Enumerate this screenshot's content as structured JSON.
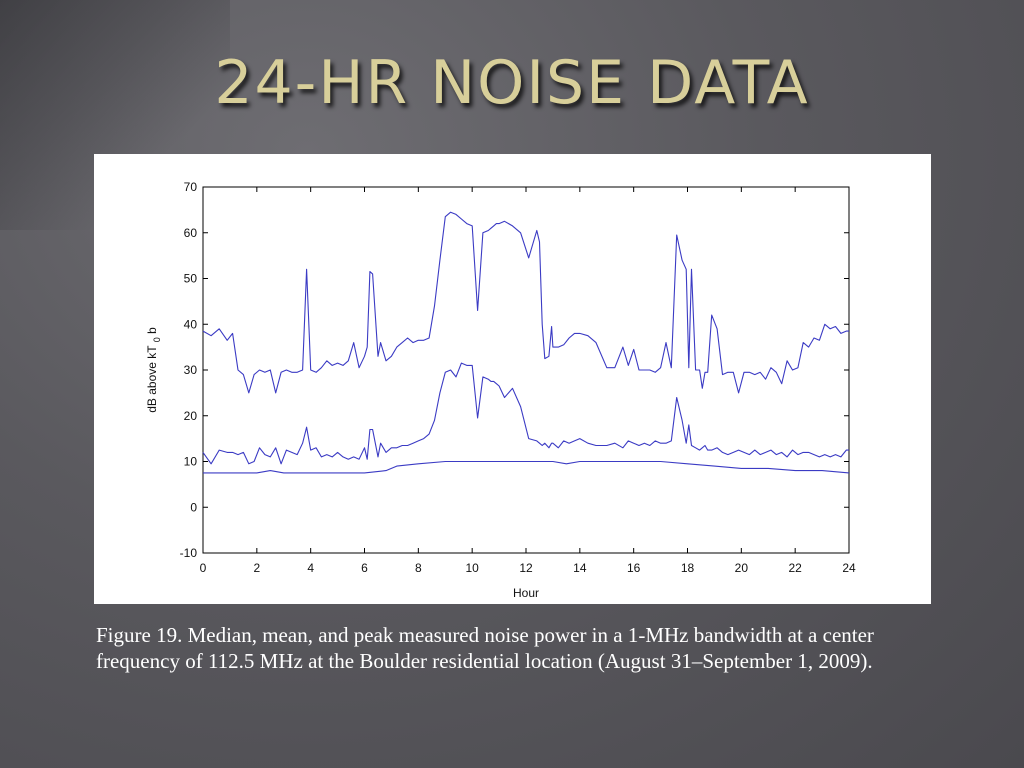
{
  "slide": {
    "title": "24-HR NOISE DATA",
    "caption": "Figure 19. Median, mean, and peak measured noise power in a 1-MHz bandwidth at a center frequency of 112.5 MHz at the Boulder residential location (August 31–September 1, 2009).",
    "colors": {
      "title": "#d8cf9a",
      "line": "#3b3bc4",
      "background": "#5a595e"
    }
  },
  "chart_data": {
    "type": "line",
    "xlabel": "Hour",
    "ylabel": "dB above kT",
    "ylabel_subscript": "0",
    "ylabel_suffix": "b",
    "xlim": [
      0,
      24
    ],
    "ylim": [
      -10,
      70
    ],
    "x_ticks": [
      0,
      2,
      4,
      6,
      8,
      10,
      12,
      14,
      16,
      18,
      20,
      22,
      24
    ],
    "y_ticks": [
      -10,
      0,
      10,
      20,
      30,
      40,
      50,
      60,
      70
    ],
    "grid": false,
    "series": [
      {
        "x": [
          0,
          0.3,
          0.6,
          0.9,
          1.1,
          1.3,
          1.5,
          1.7,
          1.9,
          2.1,
          2.3,
          2.5,
          2.7,
          2.9,
          3.1,
          3.3,
          3.5,
          3.7,
          3.85,
          4.0,
          4.2,
          4.4,
          4.6,
          4.8,
          5.0,
          5.2,
          5.4,
          5.6,
          5.8,
          6.0,
          6.1,
          6.2,
          6.3,
          6.5,
          6.6,
          6.8,
          7.0,
          7.2,
          7.4,
          7.6,
          7.8,
          8.0,
          8.2,
          8.4,
          8.6,
          8.8,
          9.0,
          9.2,
          9.4,
          9.6,
          9.8,
          10.0,
          10.2,
          10.4,
          10.6,
          10.7,
          10.8,
          10.9,
          11.0,
          11.2,
          11.5,
          11.8,
          12.1,
          12.4,
          12.5,
          12.6,
          12.7,
          12.85,
          12.95,
          13.0,
          13.2,
          13.4,
          13.6,
          13.8,
          14.0,
          14.3,
          14.6,
          15.0,
          15.3,
          15.6,
          15.8,
          16.0,
          16.2,
          16.4,
          16.6,
          16.8,
          17.0,
          17.2,
          17.4,
          17.6,
          17.8,
          17.95,
          18.05,
          18.15,
          18.3,
          18.45,
          18.55,
          18.65,
          18.75,
          18.9,
          19.1,
          19.3,
          19.5,
          19.7,
          19.9,
          20.1,
          20.3,
          20.5,
          20.7,
          20.9,
          21.1,
          21.3,
          21.5,
          21.7,
          21.9,
          22.1,
          22.3,
          22.5,
          22.7,
          22.9,
          23.1,
          23.3,
          23.5,
          23.7,
          23.9,
          24.0
        ],
        "values": [
          38.5,
          37.5,
          39.0,
          36.5,
          38.0,
          30.0,
          29.0,
          25.0,
          29.0,
          30.0,
          29.5,
          30.0,
          25.0,
          29.5,
          30.0,
          29.5,
          29.5,
          30.0,
          52.0,
          30.0,
          29.5,
          30.5,
          32.0,
          31.0,
          31.5,
          31.0,
          32.0,
          36.0,
          30.5,
          33.0,
          35.0,
          51.5,
          51.0,
          33.0,
          36.0,
          32.0,
          33.0,
          35.0,
          36.0,
          37.0,
          36.0,
          36.5,
          36.5,
          37.0,
          44.0,
          54.0,
          63.5,
          64.5,
          64.0,
          63.0,
          62.0,
          61.5,
          43.0,
          60.0,
          60.5,
          61.0,
          61.5,
          62.0,
          62.0,
          62.5,
          61.5,
          60.0,
          54.5,
          60.5,
          58.0,
          40.0,
          32.5,
          33.0,
          39.5,
          35.0,
          35.0,
          35.5,
          37.0,
          38.0,
          38.0,
          37.5,
          36.0,
          30.5,
          30.5,
          35.0,
          31.0,
          34.5,
          30.0,
          30.0,
          30.0,
          29.5,
          30.5,
          36.0,
          30.5,
          59.5,
          54.0,
          52.0,
          30.5,
          52.0,
          30.0,
          30.0,
          26.0,
          29.5,
          29.5,
          42.0,
          39.0,
          29.0,
          29.5,
          29.5,
          25.0,
          29.5,
          29.5,
          29.0,
          29.5,
          28.0,
          30.5,
          29.5,
          27.0,
          32.0,
          30.0,
          30.5,
          36.0,
          35.0,
          37.0,
          36.5,
          40.0,
          39.0,
          39.5,
          38.0,
          38.5,
          38.5
        ]
      },
      {
        "x": [
          0,
          0.3,
          0.6,
          0.9,
          1.1,
          1.3,
          1.5,
          1.7,
          1.9,
          2.1,
          2.3,
          2.5,
          2.7,
          2.9,
          3.1,
          3.3,
          3.5,
          3.7,
          3.85,
          4.0,
          4.2,
          4.4,
          4.6,
          4.8,
          5.0,
          5.2,
          5.4,
          5.6,
          5.8,
          6.0,
          6.1,
          6.2,
          6.3,
          6.5,
          6.6,
          6.8,
          7.0,
          7.2,
          7.4,
          7.6,
          7.8,
          8.0,
          8.2,
          8.4,
          8.6,
          8.8,
          9.0,
          9.2,
          9.4,
          9.6,
          9.8,
          10.0,
          10.2,
          10.4,
          10.6,
          10.7,
          10.8,
          10.9,
          11.0,
          11.2,
          11.5,
          11.8,
          12.1,
          12.4,
          12.5,
          12.6,
          12.7,
          12.85,
          12.95,
          13.0,
          13.2,
          13.4,
          13.6,
          13.8,
          14.0,
          14.3,
          14.6,
          15.0,
          15.3,
          15.6,
          15.8,
          16.0,
          16.2,
          16.4,
          16.6,
          16.8,
          17.0,
          17.2,
          17.4,
          17.6,
          17.8,
          17.95,
          18.05,
          18.15,
          18.3,
          18.45,
          18.55,
          18.65,
          18.75,
          18.9,
          19.1,
          19.3,
          19.5,
          19.7,
          19.9,
          20.1,
          20.3,
          20.5,
          20.7,
          20.9,
          21.1,
          21.3,
          21.5,
          21.7,
          21.9,
          22.1,
          22.3,
          22.5,
          22.7,
          22.9,
          23.1,
          23.3,
          23.5,
          23.7,
          23.9,
          24.0
        ],
        "values": [
          12.0,
          9.5,
          12.5,
          12.0,
          12.0,
          11.5,
          12.0,
          9.5,
          10.0,
          13.0,
          11.5,
          11.0,
          13.0,
          9.5,
          12.5,
          12.0,
          11.5,
          14.0,
          17.5,
          12.5,
          13.0,
          11.0,
          11.5,
          11.0,
          12.0,
          11.0,
          10.5,
          11.0,
          10.5,
          13.0,
          10.5,
          17.0,
          17.0,
          11.0,
          14.0,
          12.0,
          13.0,
          13.0,
          13.5,
          13.5,
          14.0,
          14.5,
          15.0,
          16.0,
          19.0,
          25.0,
          29.5,
          30.0,
          28.5,
          31.5,
          31.0,
          31.0,
          19.5,
          28.5,
          28.0,
          27.5,
          27.5,
          27.0,
          26.5,
          24.0,
          26.0,
          22.0,
          15.0,
          14.5,
          14.0,
          13.5,
          14.0,
          13.0,
          14.0,
          14.0,
          13.0,
          14.5,
          14.0,
          14.5,
          15.0,
          14.0,
          13.5,
          13.5,
          14.0,
          13.0,
          14.5,
          14.0,
          13.5,
          14.0,
          13.5,
          14.5,
          14.0,
          14.0,
          14.5,
          24.0,
          19.0,
          14.0,
          18.0,
          13.5,
          13.0,
          12.5,
          13.0,
          13.5,
          12.5,
          12.5,
          13.0,
          12.0,
          11.5,
          12.0,
          12.5,
          12.0,
          11.5,
          12.5,
          11.5,
          12.0,
          12.5,
          11.5,
          12.0,
          11.0,
          12.5,
          11.5,
          12.0,
          12.0,
          11.5,
          11.0,
          11.5,
          11.0,
          11.5,
          11.0,
          12.5,
          12.5
        ]
      },
      {
        "x": [
          0,
          1,
          2,
          2.5,
          3,
          4,
          5,
          6,
          6.8,
          7.2,
          8,
          9,
          10,
          11,
          12,
          13,
          13.5,
          14,
          15,
          16,
          17,
          18,
          19,
          20,
          21,
          22,
          23,
          24
        ],
        "values": [
          7.5,
          7.5,
          7.5,
          8.0,
          7.5,
          7.5,
          7.5,
          7.5,
          8.0,
          9.0,
          9.5,
          10.0,
          10.0,
          10.0,
          10.0,
          10.0,
          9.5,
          10.0,
          10.0,
          10.0,
          10.0,
          9.5,
          9.0,
          8.5,
          8.5,
          8.0,
          8.0,
          7.5
        ]
      }
    ]
  }
}
